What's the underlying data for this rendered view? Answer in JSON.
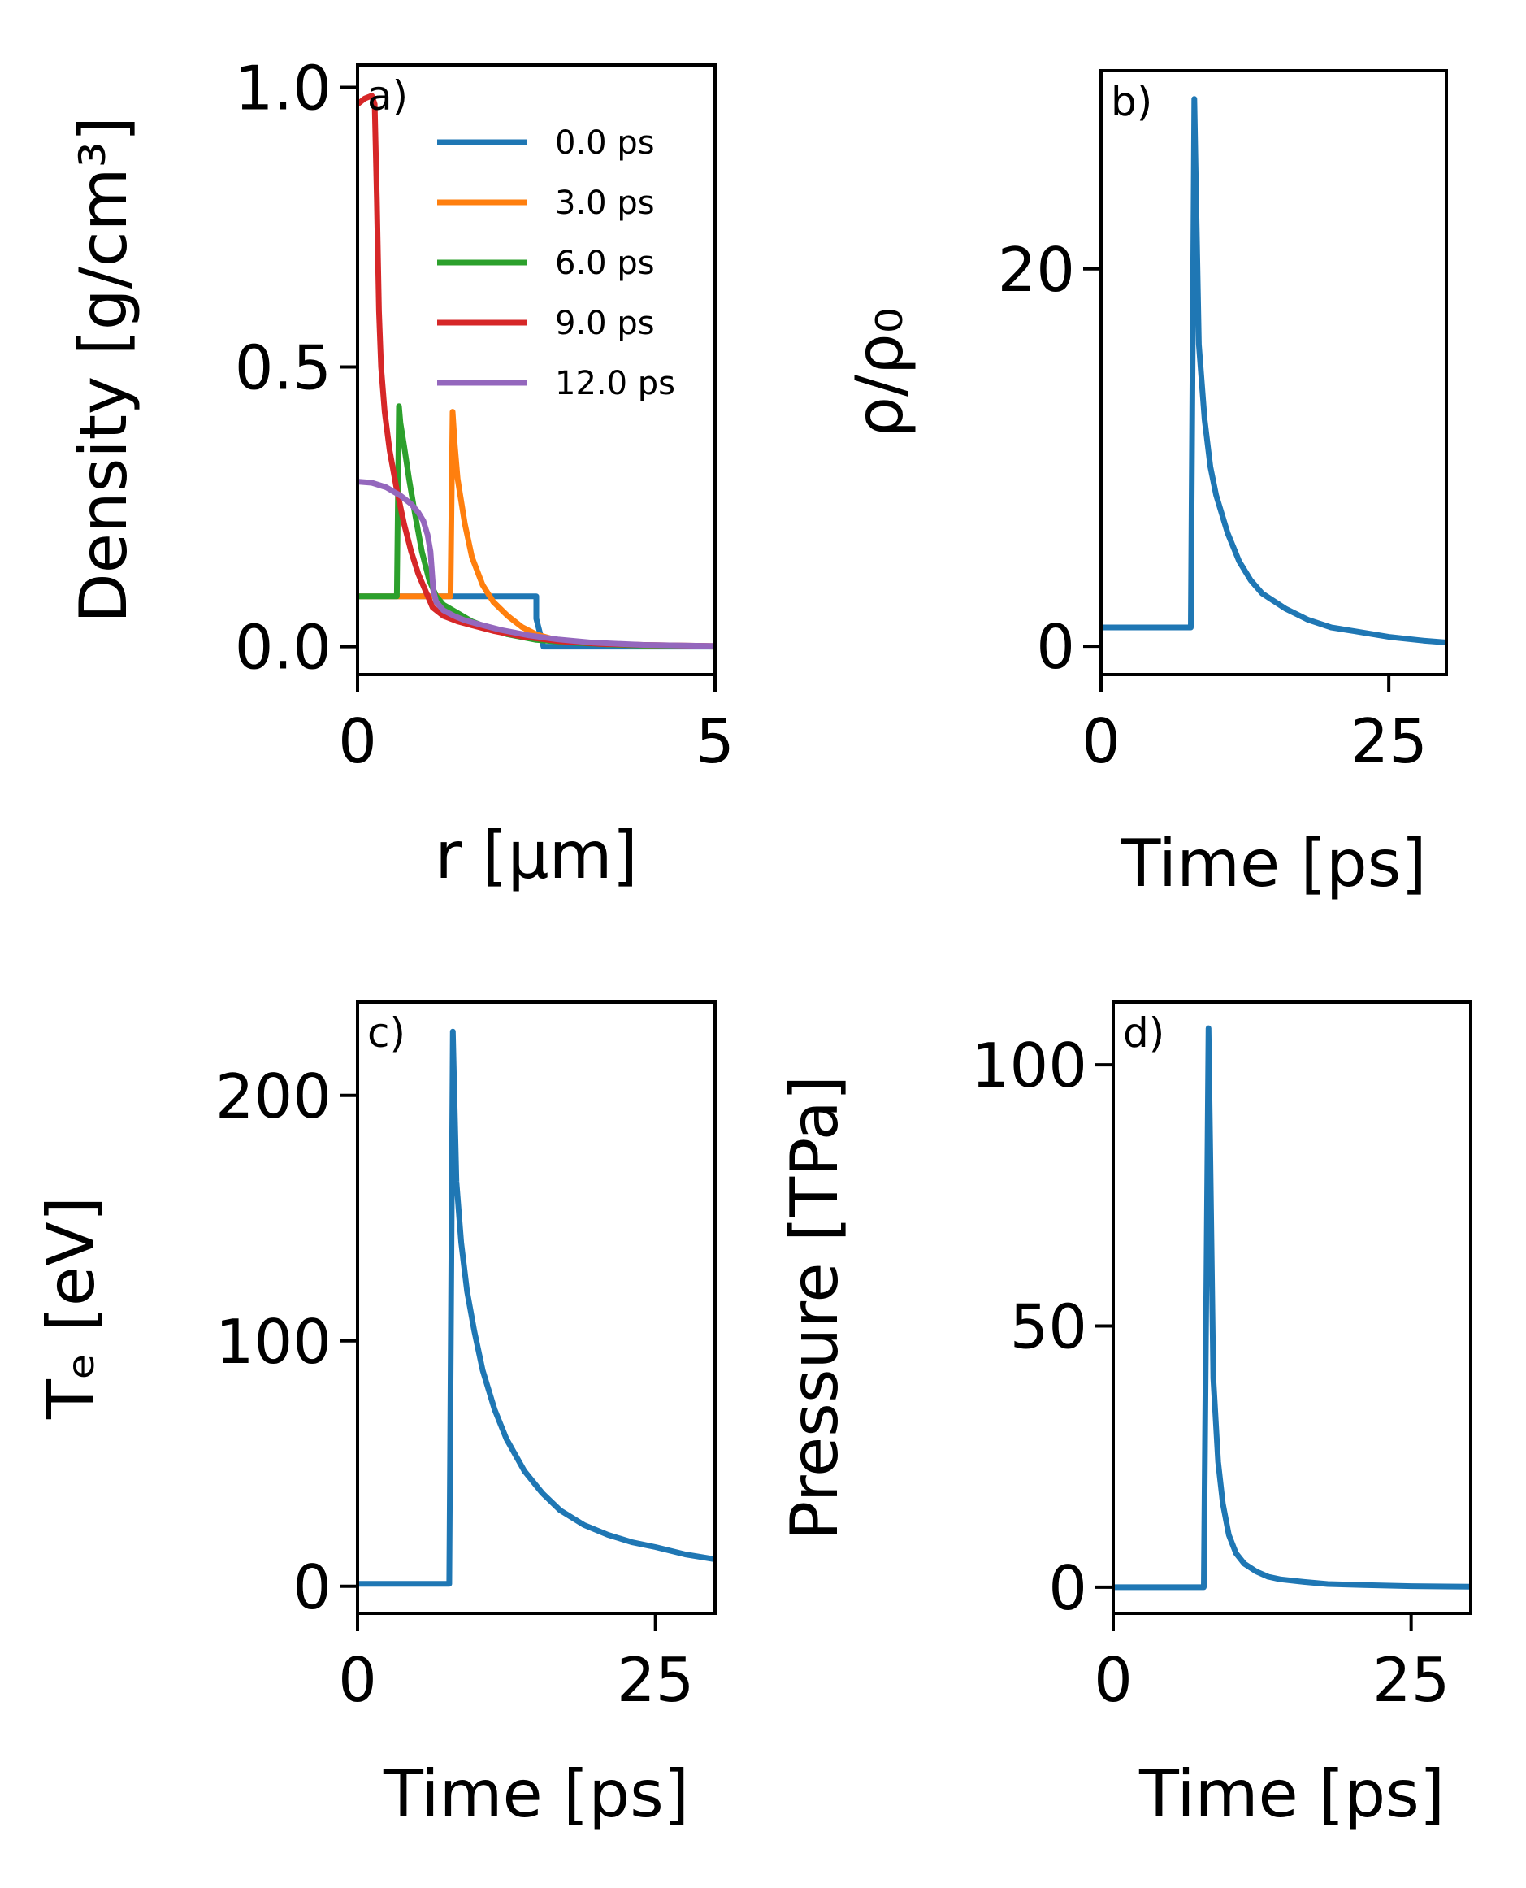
{
  "chart_data": [
    {
      "type": "line",
      "panel_label": "a)",
      "xlabel": "r [μm]",
      "ylabel": "Density [g/cm³]",
      "xlim": [
        0,
        5
      ],
      "ylim": [
        -0.05,
        1.04
      ],
      "xticks": [
        0,
        5
      ],
      "yticks": [
        0.0,
        0.5,
        1.0
      ],
      "xtick_labels": [
        "0",
        "5"
      ],
      "ytick_labels": [
        "0.0",
        "0.5",
        "1.0"
      ],
      "grid": false,
      "legend_position": "upper-right",
      "series": [
        {
          "name": "0.0 ps",
          "color": "#1f77b4",
          "x": [
            0,
            2.5,
            2.5,
            2.6,
            5.0
          ],
          "y": [
            0.09,
            0.09,
            0.05,
            0.0,
            0.0
          ]
        },
        {
          "name": "3.0 ps",
          "color": "#ff7f0e",
          "x": [
            0,
            1.3,
            1.33,
            1.36,
            1.4,
            1.5,
            1.6,
            1.75,
            1.9,
            2.1,
            2.3,
            2.5,
            2.75,
            3.0,
            3.5,
            4.0,
            4.5,
            5.0
          ],
          "y": [
            0.09,
            0.09,
            0.42,
            0.36,
            0.3,
            0.22,
            0.16,
            0.11,
            0.08,
            0.055,
            0.035,
            0.022,
            0.013,
            0.008,
            0.004,
            0.002,
            0.001,
            0.0
          ]
        },
        {
          "name": "6.0 ps",
          "color": "#2ca02c",
          "x": [
            0,
            0.55,
            0.58,
            0.6,
            0.65,
            0.72,
            0.8,
            0.9,
            1.0,
            1.1,
            1.2,
            1.4,
            1.6,
            1.8,
            2.1,
            2.5,
            3.0,
            3.5,
            4.0,
            4.5,
            5.0
          ],
          "y": [
            0.09,
            0.09,
            0.43,
            0.4,
            0.36,
            0.3,
            0.24,
            0.17,
            0.12,
            0.09,
            0.075,
            0.06,
            0.045,
            0.035,
            0.022,
            0.012,
            0.007,
            0.004,
            0.002,
            0.001,
            0.0
          ]
        },
        {
          "name": "9.0 ps",
          "color": "#d62728",
          "x": [
            0,
            0.1,
            0.2,
            0.24,
            0.27,
            0.3,
            0.33,
            0.38,
            0.45,
            0.55,
            0.65,
            0.75,
            0.85,
            0.95,
            1.05,
            1.2,
            1.4,
            1.6,
            1.9,
            2.3,
            2.8,
            3.4,
            4.0,
            5.0
          ],
          "y": [
            0.97,
            0.98,
            0.985,
            0.97,
            0.8,
            0.6,
            0.5,
            0.42,
            0.35,
            0.28,
            0.22,
            0.17,
            0.13,
            0.1,
            0.07,
            0.055,
            0.045,
            0.038,
            0.028,
            0.018,
            0.01,
            0.005,
            0.003,
            0.001
          ]
        },
        {
          "name": "12.0 ps",
          "color": "#9467bd",
          "x": [
            0,
            0.2,
            0.4,
            0.6,
            0.75,
            0.85,
            0.92,
            0.98,
            1.02,
            1.06,
            1.1,
            1.2,
            1.35,
            1.5,
            1.7,
            2.0,
            2.4,
            2.8,
            3.3,
            4.0,
            5.0
          ],
          "y": [
            0.295,
            0.293,
            0.285,
            0.27,
            0.255,
            0.24,
            0.225,
            0.2,
            0.17,
            0.1,
            0.08,
            0.065,
            0.055,
            0.047,
            0.04,
            0.03,
            0.02,
            0.013,
            0.007,
            0.003,
            0.001
          ]
        }
      ]
    },
    {
      "type": "line",
      "panel_label": "b)",
      "xlabel": "Time [ps]",
      "ylabel": "ρ/ρ₀",
      "xlim": [
        0,
        30
      ],
      "ylim": [
        -1.5,
        30.5
      ],
      "xticks": [
        0,
        25
      ],
      "yticks": [
        0,
        20
      ],
      "xtick_labels": [
        "0",
        "25"
      ],
      "ytick_labels": [
        "0",
        "20"
      ],
      "grid": false,
      "series": [
        {
          "color": "#1f77b4",
          "x": [
            0,
            7.8,
            8.1,
            8.5,
            9,
            9.5,
            10,
            11,
            12,
            13,
            14,
            16,
            18,
            20,
            22,
            25,
            28,
            30
          ],
          "y": [
            1,
            1,
            29,
            16,
            12,
            9.5,
            8,
            6,
            4.5,
            3.5,
            2.8,
            2,
            1.4,
            1.0,
            0.8,
            0.5,
            0.3,
            0.2
          ]
        }
      ]
    },
    {
      "type": "line",
      "panel_label": "c)",
      "xlabel": "Time [ps]",
      "ylabel": "Tₑ [eV]",
      "xlim": [
        0,
        30
      ],
      "ylim": [
        -11,
        238
      ],
      "xticks": [
        0,
        25
      ],
      "yticks": [
        0,
        100,
        200
      ],
      "xtick_labels": [
        "0",
        "25"
      ],
      "ytick_labels": [
        "0",
        "100",
        "200"
      ],
      "grid": false,
      "series": [
        {
          "color": "#1f77b4",
          "x": [
            0,
            7.7,
            8.0,
            8.3,
            8.7,
            9.2,
            9.8,
            10.5,
            11.5,
            12.5,
            14,
            15.5,
            17,
            19,
            21,
            23,
            25,
            27.5,
            30
          ],
          "y": [
            1,
            1,
            226,
            165,
            140,
            120,
            104,
            88,
            72,
            60,
            47,
            38,
            31,
            25,
            21,
            18,
            16,
            13,
            11
          ]
        }
      ]
    },
    {
      "type": "line",
      "panel_label": "d)",
      "xlabel": "Time [ps]",
      "ylabel": "Pressure [TPa]",
      "xlim": [
        0,
        30
      ],
      "ylim": [
        -5,
        112
      ],
      "xticks": [
        0,
        25
      ],
      "yticks": [
        0,
        50,
        100
      ],
      "xtick_labels": [
        "0",
        "25"
      ],
      "ytick_labels": [
        "0",
        "50",
        "100"
      ],
      "grid": false,
      "series": [
        {
          "color": "#1f77b4",
          "x": [
            0,
            7.6,
            8.0,
            8.4,
            8.8,
            9.2,
            9.7,
            10.3,
            11,
            12,
            13,
            14,
            16,
            18,
            21,
            25,
            30
          ],
          "y": [
            0,
            0,
            107,
            40,
            24,
            16,
            10,
            6.5,
            4.5,
            3,
            2,
            1.5,
            1,
            0.6,
            0.4,
            0.2,
            0.1
          ]
        }
      ]
    }
  ]
}
